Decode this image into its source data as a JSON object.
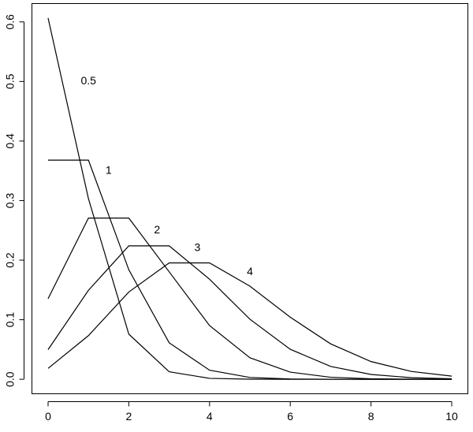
{
  "chart_data": {
    "type": "line",
    "x": [
      0,
      1,
      2,
      3,
      4,
      5,
      6,
      7,
      8,
      9,
      10
    ],
    "series": [
      {
        "name": "0.5",
        "color": "#000000",
        "values": [
          0.6065,
          0.3033,
          0.0758,
          0.0126,
          0.0016,
          0.0002,
          0.0,
          0.0,
          0.0,
          0.0,
          0.0
        ]
      },
      {
        "name": "1",
        "color": "#000000",
        "values": [
          0.3679,
          0.3679,
          0.1839,
          0.0613,
          0.0153,
          0.0031,
          0.0005,
          0.0001,
          0.0,
          0.0,
          0.0
        ]
      },
      {
        "name": "2",
        "color": "#000000",
        "values": [
          0.1353,
          0.2707,
          0.2707,
          0.1804,
          0.0902,
          0.0361,
          0.012,
          0.0034,
          0.0009,
          0.0002,
          0.0
        ]
      },
      {
        "name": "3",
        "color": "#000000",
        "values": [
          0.0498,
          0.1494,
          0.224,
          0.224,
          0.168,
          0.1008,
          0.0504,
          0.0216,
          0.0081,
          0.0027,
          0.0008
        ]
      },
      {
        "name": "4",
        "color": "#000000",
        "values": [
          0.0183,
          0.0733,
          0.1465,
          0.1954,
          0.1954,
          0.1563,
          0.1042,
          0.0595,
          0.0298,
          0.0132,
          0.0053
        ]
      }
    ],
    "xlim": [
      -0.4,
      10.4
    ],
    "ylim": [
      -0.0243,
      0.6308
    ],
    "xticks": [
      0,
      2,
      4,
      6,
      8,
      10
    ],
    "yticks": [
      {
        "value": 0,
        "label": "0.0"
      },
      0.1,
      0.2,
      0.3,
      0.4,
      0.5,
      0.6
    ]
  }
}
